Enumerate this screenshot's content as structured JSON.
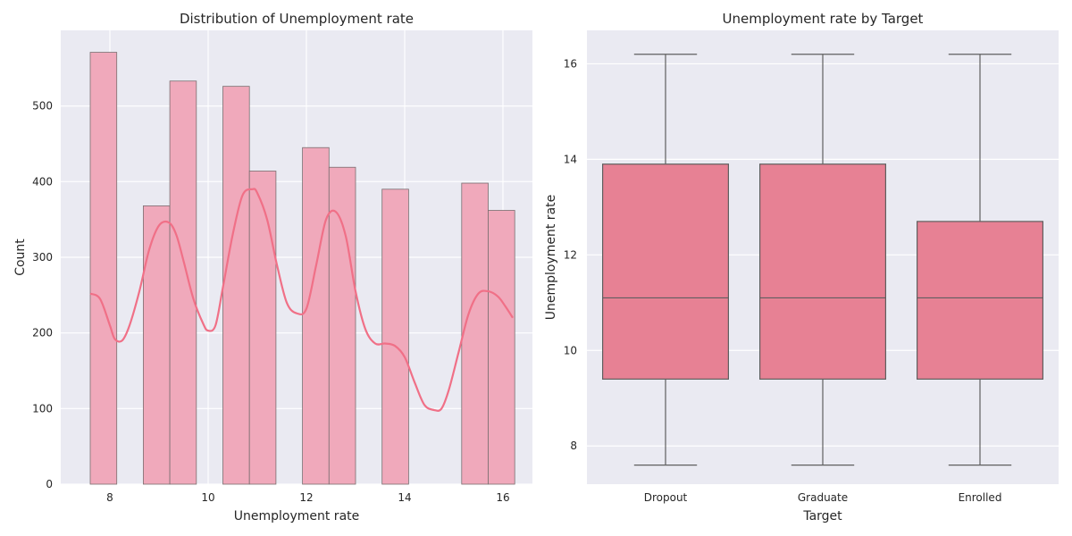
{
  "chart_data": [
    {
      "type": "bar",
      "subtype": "histogram_with_kde",
      "title": "Distribution of Unemployment rate",
      "xlabel": "Unemployment rate",
      "ylabel": "Count",
      "xlim": [
        7.0,
        16.6
      ],
      "ylim": [
        0,
        600
      ],
      "xticks": [
        8,
        10,
        12,
        14,
        16
      ],
      "yticks": [
        0,
        100,
        200,
        300,
        400,
        500
      ],
      "grid": true,
      "bar_color": "#f0a9bb",
      "bar_edge_color": "#7a6e70",
      "kde_color": "#f07087",
      "bins": [
        {
          "x0": 7.6,
          "x1": 8.14,
          "count": 571
        },
        {
          "x0": 8.68,
          "x1": 9.22,
          "count": 368
        },
        {
          "x0": 9.22,
          "x1": 9.76,
          "count": 533
        },
        {
          "x0": 10.3,
          "x1": 10.84,
          "count": 526
        },
        {
          "x0": 10.84,
          "x1": 11.38,
          "count": 414
        },
        {
          "x0": 11.92,
          "x1": 12.46,
          "count": 445
        },
        {
          "x0": 12.46,
          "x1": 13.0,
          "count": 419
        },
        {
          "x0": 13.54,
          "x1": 14.08,
          "count": 390
        },
        {
          "x0": 15.16,
          "x1": 15.7,
          "count": 398
        },
        {
          "x0": 15.7,
          "x1": 16.24,
          "count": 362
        }
      ],
      "kde": {
        "x": [
          7.6,
          7.8,
          8.0,
          8.1,
          8.25,
          8.4,
          8.6,
          8.8,
          9.0,
          9.2,
          9.35,
          9.5,
          9.7,
          9.9,
          10.0,
          10.15,
          10.3,
          10.5,
          10.7,
          10.9,
          11.0,
          11.2,
          11.4,
          11.6,
          11.8,
          12.0,
          12.2,
          12.4,
          12.6,
          12.8,
          13.0,
          13.2,
          13.4,
          13.6,
          13.8,
          14.0,
          14.2,
          14.4,
          14.6,
          14.75,
          14.9,
          15.1,
          15.3,
          15.5,
          15.7,
          15.9,
          16.05,
          16.2
        ],
        "y": [
          252,
          245,
          210,
          192,
          190,
          210,
          255,
          310,
          342,
          346,
          330,
          295,
          245,
          212,
          203,
          210,
          260,
          330,
          382,
          390,
          385,
          350,
          290,
          240,
          226,
          232,
          290,
          350,
          360,
          328,
          255,
          205,
          186,
          186,
          183,
          168,
          135,
          105,
          98,
          100,
          125,
          175,
          225,
          252,
          255,
          248,
          235,
          220
        ]
      }
    },
    {
      "type": "box",
      "title": "Unemployment rate by Target",
      "xlabel": "Target",
      "ylabel": "Unemployment rate",
      "ylim": [
        7.2,
        16.7
      ],
      "yticks": [
        8,
        10,
        12,
        14,
        16
      ],
      "grid": true,
      "box_color": "#e78194",
      "line_color": "#5f5f5f",
      "categories": [
        "Dropout",
        "Graduate",
        "Enrolled"
      ],
      "series": [
        {
          "category": "Dropout",
          "min": 7.6,
          "q1": 9.4,
          "median": 11.1,
          "q3": 13.9,
          "max": 16.2
        },
        {
          "category": "Graduate",
          "min": 7.6,
          "q1": 9.4,
          "median": 11.1,
          "q3": 13.9,
          "max": 16.2
        },
        {
          "category": "Enrolled",
          "min": 7.6,
          "q1": 9.4,
          "median": 11.1,
          "q3": 12.7,
          "max": 16.2
        }
      ]
    }
  ]
}
